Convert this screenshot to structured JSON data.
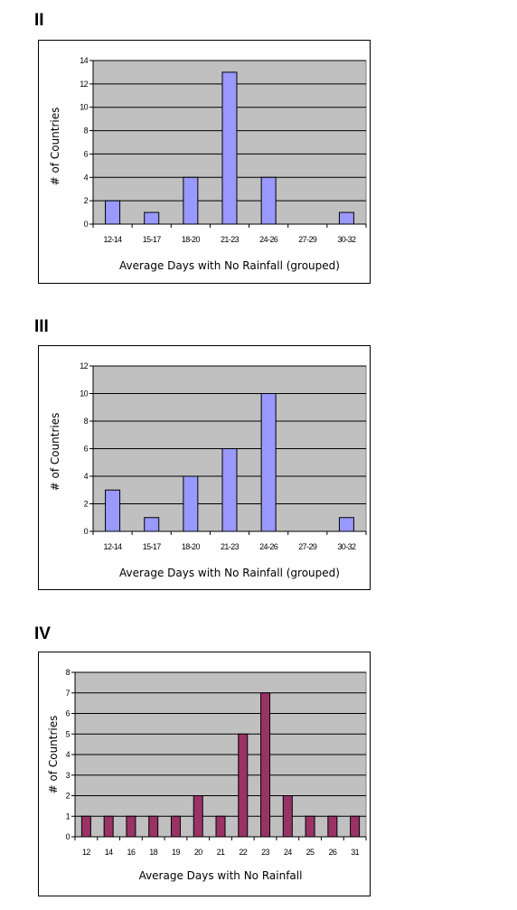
{
  "chart_data": [
    {
      "type": "bar",
      "panel": "II",
      "categories": [
        "12-14",
        "15-17",
        "18-20",
        "21-23",
        "24-26",
        "27-29",
        "30-32"
      ],
      "values": [
        2,
        1,
        4,
        13,
        4,
        0,
        1
      ],
      "xlabel": "Average Days with No Rainfall (grouped)",
      "ylabel": "# of Countries",
      "ylim": [
        0,
        14
      ],
      "yticks": [
        0,
        2,
        4,
        6,
        8,
        10,
        12,
        14
      ],
      "grid": true,
      "plot_color": "#c0c0c0",
      "bar_color": "#9999ff"
    },
    {
      "type": "bar",
      "panel": "III",
      "categories": [
        "12-14",
        "15-17",
        "18-20",
        "21-23",
        "24-26",
        "27-29",
        "30-32"
      ],
      "values": [
        3,
        1,
        4,
        6,
        10,
        0,
        1
      ],
      "xlabel": "Average Days with No Rainfall (grouped)",
      "ylabel": "# of Countries",
      "ylim": [
        0,
        12
      ],
      "yticks": [
        0,
        2,
        4,
        6,
        8,
        10,
        12
      ],
      "grid": true,
      "plot_color": "#c0c0c0",
      "bar_color": "#9999ff"
    },
    {
      "type": "bar",
      "panel": "IV",
      "categories": [
        "12",
        "14",
        "16",
        "18",
        "19",
        "20",
        "21",
        "22",
        "23",
        "24",
        "25",
        "26",
        "31"
      ],
      "values": [
        1,
        1,
        1,
        1,
        1,
        2,
        1,
        5,
        7,
        2,
        1,
        1,
        1
      ],
      "xlabel": "Average Days with No Rainfall",
      "ylabel": "# of Countries",
      "ylim": [
        0,
        8
      ],
      "yticks": [
        0,
        1,
        2,
        3,
        4,
        5,
        6,
        7,
        8
      ],
      "grid": true,
      "plot_color": "#c0c0c0",
      "bar_color": "#993366"
    }
  ]
}
